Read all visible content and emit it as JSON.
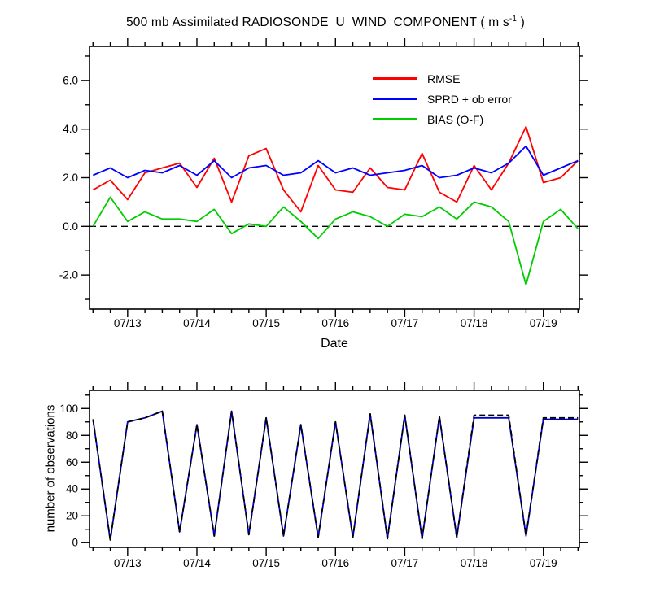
{
  "title": {
    "prefix": "500 mb Assimilated RADIOSONDE_U_WIND_COMPONENT ( m s",
    "sup": "-1",
    "suffix": " )"
  },
  "chart_data": [
    {
      "type": "line",
      "panel": "top",
      "title": "500 mb Assimilated RADIOSONDE_U_WIND_COMPONENT ( m s-1 )",
      "xlabel": "Date",
      "ylabel": "",
      "xlim": [
        12.45,
        19.52
      ],
      "ylim": [
        -3.4,
        7.4
      ],
      "xticks": [
        13,
        14,
        15,
        16,
        17,
        18,
        19
      ],
      "xtick_labels": [
        "07/13",
        "07/14",
        "07/15",
        "07/16",
        "07/17",
        "07/18",
        "07/19"
      ],
      "x_minor_step": 0.25,
      "yticks": [
        -2,
        0,
        2,
        4,
        6
      ],
      "ytick_labels": [
        "-2.0",
        "0.0",
        "2.0",
        "4.0",
        "6.0"
      ],
      "y_minor_step": 1,
      "grid": false,
      "zero_line": {
        "show": true,
        "style": "dashed",
        "color": "#000000"
      },
      "legend_position": "upper-right-inside",
      "x": [
        12.5,
        12.75,
        13.0,
        13.25,
        13.5,
        13.75,
        14.0,
        14.25,
        14.5,
        14.75,
        15.0,
        15.25,
        15.5,
        15.75,
        16.0,
        16.25,
        16.5,
        16.75,
        17.0,
        17.25,
        17.5,
        17.75,
        18.0,
        18.25,
        18.5,
        18.75,
        19.0,
        19.25,
        19.5
      ],
      "series": [
        {
          "name": "RMSE",
          "color": "#ff0000",
          "values": [
            1.5,
            1.9,
            1.1,
            2.2,
            2.4,
            2.6,
            1.6,
            2.8,
            1.0,
            2.9,
            3.2,
            1.5,
            0.6,
            2.5,
            1.5,
            1.4,
            2.4,
            1.6,
            1.5,
            3.0,
            1.4,
            1.0,
            2.5,
            1.5,
            2.6,
            4.1,
            1.8,
            2.0,
            2.7
          ]
        },
        {
          "name": "SPRD + ob error",
          "color": "#0000ff",
          "values": [
            2.1,
            2.4,
            2.0,
            2.3,
            2.2,
            2.5,
            2.1,
            2.7,
            2.0,
            2.4,
            2.5,
            2.1,
            2.2,
            2.7,
            2.2,
            2.4,
            2.1,
            2.2,
            2.3,
            2.5,
            2.0,
            2.1,
            2.4,
            2.2,
            2.6,
            3.3,
            2.1,
            2.4,
            2.7
          ]
        },
        {
          "name": "BIAS (O-F)",
          "color": "#00cc00",
          "values": [
            0.0,
            1.2,
            0.2,
            0.6,
            0.3,
            0.3,
            0.2,
            0.7,
            -0.3,
            0.1,
            0.0,
            0.8,
            0.2,
            -0.5,
            0.3,
            0.6,
            0.4,
            0.0,
            0.5,
            0.4,
            0.8,
            0.3,
            1.0,
            0.8,
            0.2,
            -2.4,
            0.2,
            0.7,
            -0.1
          ]
        }
      ]
    },
    {
      "type": "line",
      "panel": "bottom",
      "xlabel": "",
      "ylabel": "number of observations",
      "xlim": [
        12.45,
        19.52
      ],
      "ylim": [
        -3.5,
        113.5
      ],
      "xticks": [
        13,
        14,
        15,
        16,
        17,
        18,
        19
      ],
      "xtick_labels": [
        "07/13",
        "07/14",
        "07/15",
        "07/16",
        "07/17",
        "07/18",
        "07/19"
      ],
      "x_minor_step": 0.25,
      "yticks": [
        0,
        20,
        40,
        60,
        80,
        100
      ],
      "ytick_labels": [
        "0",
        "20",
        "40",
        "60",
        "80",
        "100"
      ],
      "y_minor_step": 10,
      "grid": false,
      "x": [
        12.5,
        12.75,
        13.0,
        13.25,
        13.5,
        13.75,
        14.0,
        14.25,
        14.5,
        14.75,
        15.0,
        15.25,
        15.5,
        15.75,
        16.0,
        16.25,
        16.5,
        16.75,
        17.0,
        17.25,
        17.5,
        17.75,
        18.0,
        18.25,
        18.5,
        18.75,
        19.0,
        19.25,
        19.5
      ],
      "series": [
        {
          "id": "observations-solid",
          "color": "#0000cd",
          "values": [
            92,
            2,
            90,
            93,
            98,
            8,
            88,
            5,
            98,
            6,
            93,
            5,
            88,
            4,
            90,
            4,
            96,
            3,
            95,
            3,
            94,
            4,
            93,
            93,
            93,
            5,
            92,
            92,
            92
          ]
        },
        {
          "id": "observations-dashed",
          "color": "#000000",
          "dash": "7 4",
          "values": [
            92,
            2,
            90,
            93,
            98,
            8,
            88,
            5,
            98,
            6,
            93,
            5,
            88,
            4,
            90,
            4,
            96,
            3,
            95,
            3,
            94,
            4,
            95,
            95,
            95,
            5,
            93,
            93,
            93
          ]
        }
      ]
    }
  ]
}
